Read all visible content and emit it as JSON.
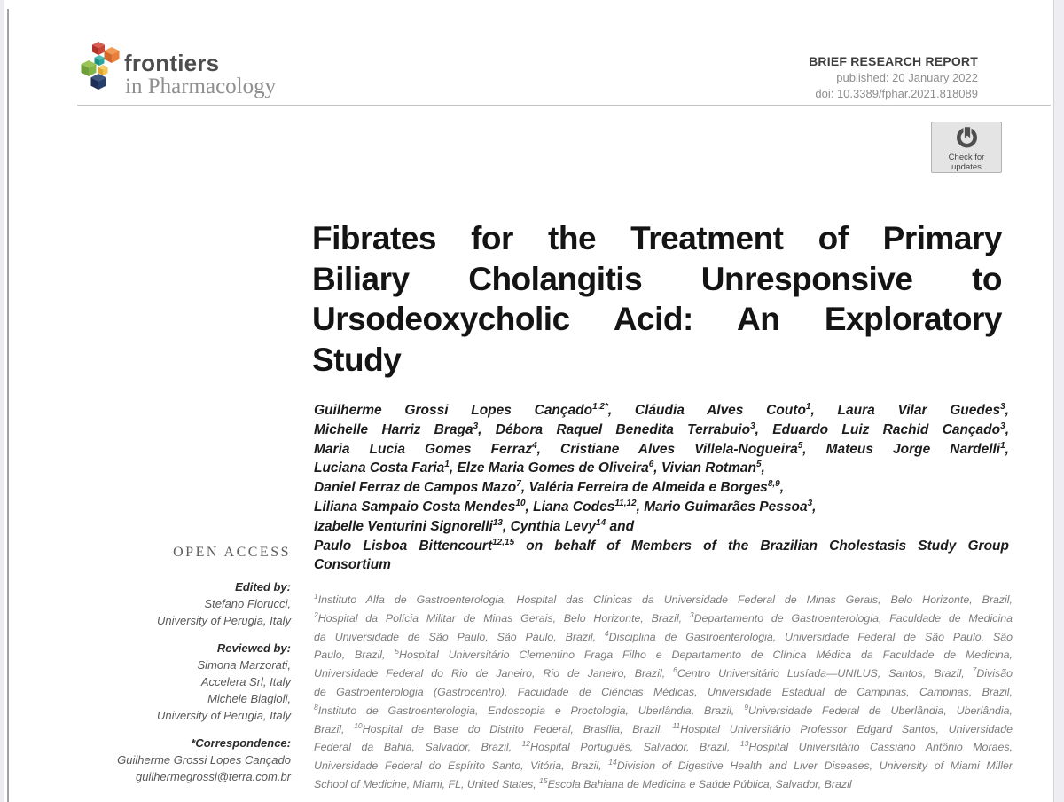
{
  "header": {
    "journal_bold": "frontiers",
    "journal_rest": "in Pharmacology",
    "article_type": "BRIEF RESEARCH REPORT",
    "published": "published: 20 January 2022",
    "doi": "doi: 10.3389/fphar.2021.818089"
  },
  "crossmark": {
    "line1": "Check for",
    "line2": "updates"
  },
  "title": {
    "lines": [
      {
        "text": "Fibrates for the Treatment of Primary",
        "fill": true
      },
      {
        "text": "Biliary Cholangitis Unresponsive to",
        "fill": true
      },
      {
        "text": "Ursodeoxycholic Acid: An Exploratory",
        "fill": true
      },
      {
        "text": "Study",
        "fill": false
      }
    ]
  },
  "authors": {
    "lines": [
      {
        "fill": true,
        "segments": [
          {
            "t": "Guilherme Grossi Lopes Cançado",
            "s": "1,2*"
          },
          {
            "t": ", Cláudia Alves Couto",
            "s": "1"
          },
          {
            "t": ", Laura Vilar Guedes",
            "s": "3"
          },
          {
            "t": ","
          }
        ]
      },
      {
        "fill": true,
        "segments": [
          {
            "t": "Michelle Harriz Braga",
            "s": "3"
          },
          {
            "t": ", Débora Raquel Benedita Terrabuio",
            "s": "3"
          },
          {
            "t": ", Eduardo Luiz Rachid Cançado",
            "s": "3"
          },
          {
            "t": ","
          }
        ]
      },
      {
        "fill": true,
        "segments": [
          {
            "t": "Maria Lucia Gomes Ferraz",
            "s": "4"
          },
          {
            "t": ", Cristiane Alves Villela-Nogueira",
            "s": "5"
          },
          {
            "t": ", Mateus Jorge Nardelli",
            "s": "1"
          },
          {
            "t": ","
          }
        ]
      },
      {
        "fill": false,
        "segments": [
          {
            "t": "Luciana Costa Faria",
            "s": "1"
          },
          {
            "t": ", Elze Maria Gomes de Oliveira",
            "s": "6"
          },
          {
            "t": ", Vivian Rotman",
            "s": "5"
          },
          {
            "t": ","
          }
        ]
      },
      {
        "fill": false,
        "segments": [
          {
            "t": "Daniel Ferraz de Campos Mazo",
            "s": "7"
          },
          {
            "t": ", Valéria Ferreira de Almeida e Borges",
            "s": "8,9"
          },
          {
            "t": ","
          }
        ]
      },
      {
        "fill": false,
        "segments": [
          {
            "t": "Liliana Sampaio Costa Mendes",
            "s": "10"
          },
          {
            "t": ", Liana Codes",
            "s": "11,12"
          },
          {
            "t": ", Mario Guimarães Pessoa",
            "s": "3"
          },
          {
            "t": ","
          }
        ]
      },
      {
        "fill": false,
        "segments": [
          {
            "t": "Izabelle Venturini Signorelli",
            "s": "13"
          },
          {
            "t": ", Cynthia Levy",
            "s": "14"
          },
          {
            "t": " and"
          }
        ]
      },
      {
        "fill": true,
        "segments": [
          {
            "t": "Paulo Lisboa Bittencourt",
            "s": "12,15"
          },
          {
            "t": " on behalf of Members of the Brazilian Cholestasis Study Group"
          }
        ]
      },
      {
        "fill": false,
        "segments": [
          {
            "t": "Consortium"
          }
        ]
      }
    ]
  },
  "sidebar": {
    "open_access": "OPEN ACCESS",
    "groups": [
      {
        "label": "Edited by:",
        "lines": [
          "Stefano Fiorucci,",
          "University of Perugia, Italy"
        ]
      },
      {
        "label": "Reviewed by:",
        "lines": [
          "Simona Marzorati,",
          "Accelera Srl, Italy",
          "Michele Biagioli,",
          "University of Perugia, Italy"
        ]
      },
      {
        "label": "*Correspondence:",
        "lines": [
          "Guilherme Grossi Lopes Cançado",
          "guilhermegrossi@terra.com.br"
        ]
      }
    ]
  },
  "affiliations": {
    "lines": [
      {
        "fill": true,
        "segments": [
          {
            "s": "1",
            "t": "Instituto Alfa de Gastroenterologia, Hospital das Clínicas da Universidade Federal de Minas Gerais, Belo Horizonte, Brazil,"
          }
        ]
      },
      {
        "fill": true,
        "segments": [
          {
            "s": "2",
            "t": "Hospital da Polícia Militar de Minas Gerais, Belo Horizonte, Brazil, "
          },
          {
            "s": "3",
            "t": "Departamento de Gastroenterologia, Faculdade de Medicina"
          }
        ]
      },
      {
        "fill": true,
        "segments": [
          {
            "t": "da Universidade de São Paulo, São Paulo, Brazil, "
          },
          {
            "s": "4",
            "t": "Disciplina de Gastroenterologia, Universidade Federal de São Paulo, São"
          }
        ]
      },
      {
        "fill": true,
        "segments": [
          {
            "t": "Paulo, Brazil, "
          },
          {
            "s": "5",
            "t": "Hospital Universitário Clementino Fraga Filho e Departamento de Clínica Médica da Faculdade de Medicina,"
          }
        ]
      },
      {
        "fill": true,
        "segments": [
          {
            "t": "Universidade Federal do Rio de Janeiro, Rio de Janeiro, Brazil, "
          },
          {
            "s": "6",
            "t": "Centro Universitário Lusíada—UNILUS, Santos, Brazil, "
          },
          {
            "s": "7",
            "t": "Divisão"
          }
        ]
      },
      {
        "fill": true,
        "segments": [
          {
            "t": "de Gastroenterologia (Gastrocentro), Faculdade de Ciências Médicas, Universidade Estadual de Campinas, Campinas, Brazil,"
          }
        ]
      },
      {
        "fill": true,
        "segments": [
          {
            "s": "8",
            "t": "Instituto de Gastroenterologia, Endoscopia e Proctologia, Uberlândia, Brazil, "
          },
          {
            "s": "9",
            "t": "Universidade Federal de Uberlândia, Uberlândia,"
          }
        ]
      },
      {
        "fill": true,
        "segments": [
          {
            "t": "Brazil, "
          },
          {
            "s": "10",
            "t": "Hospital de Base do Distrito Federal, Brasília, Brazil, "
          },
          {
            "s": "11",
            "t": "Hospital Universitário Professor Edgard Santos, Universidade"
          }
        ]
      },
      {
        "fill": true,
        "segments": [
          {
            "t": "Federal da Bahia, Salvador, Brazil, "
          },
          {
            "s": "12",
            "t": "Hospital Português, Salvador, Brazil, "
          },
          {
            "s": "13",
            "t": "Hospital Universitário Cassiano Antônio Moraes,"
          }
        ]
      },
      {
        "fill": true,
        "segments": [
          {
            "t": "Universidade Federal do Espírito Santo, Vitória, Brazil, "
          },
          {
            "s": "14",
            "t": "Division of Digestive Health and Liver Diseases, University of Miami Miller"
          }
        ]
      },
      {
        "fill": false,
        "segments": [
          {
            "t": "School of Medicine, Miami, FL, United States, "
          },
          {
            "s": "15",
            "t": "Escola Bahiana de Medicina e Saúde Pública, Salvador, Brazil"
          }
        ]
      }
    ]
  },
  "theme": {
    "rule_gray": "#c3c3c3",
    "meta_gray": "#8e8e8e",
    "logo_red": "#cf4036",
    "logo_orange": "#ec8747",
    "logo_green": "#8ab84d",
    "logo_teal": "#35a79c",
    "logo_navy": "#27406e",
    "logo_yellow": "#f2c14e"
  }
}
